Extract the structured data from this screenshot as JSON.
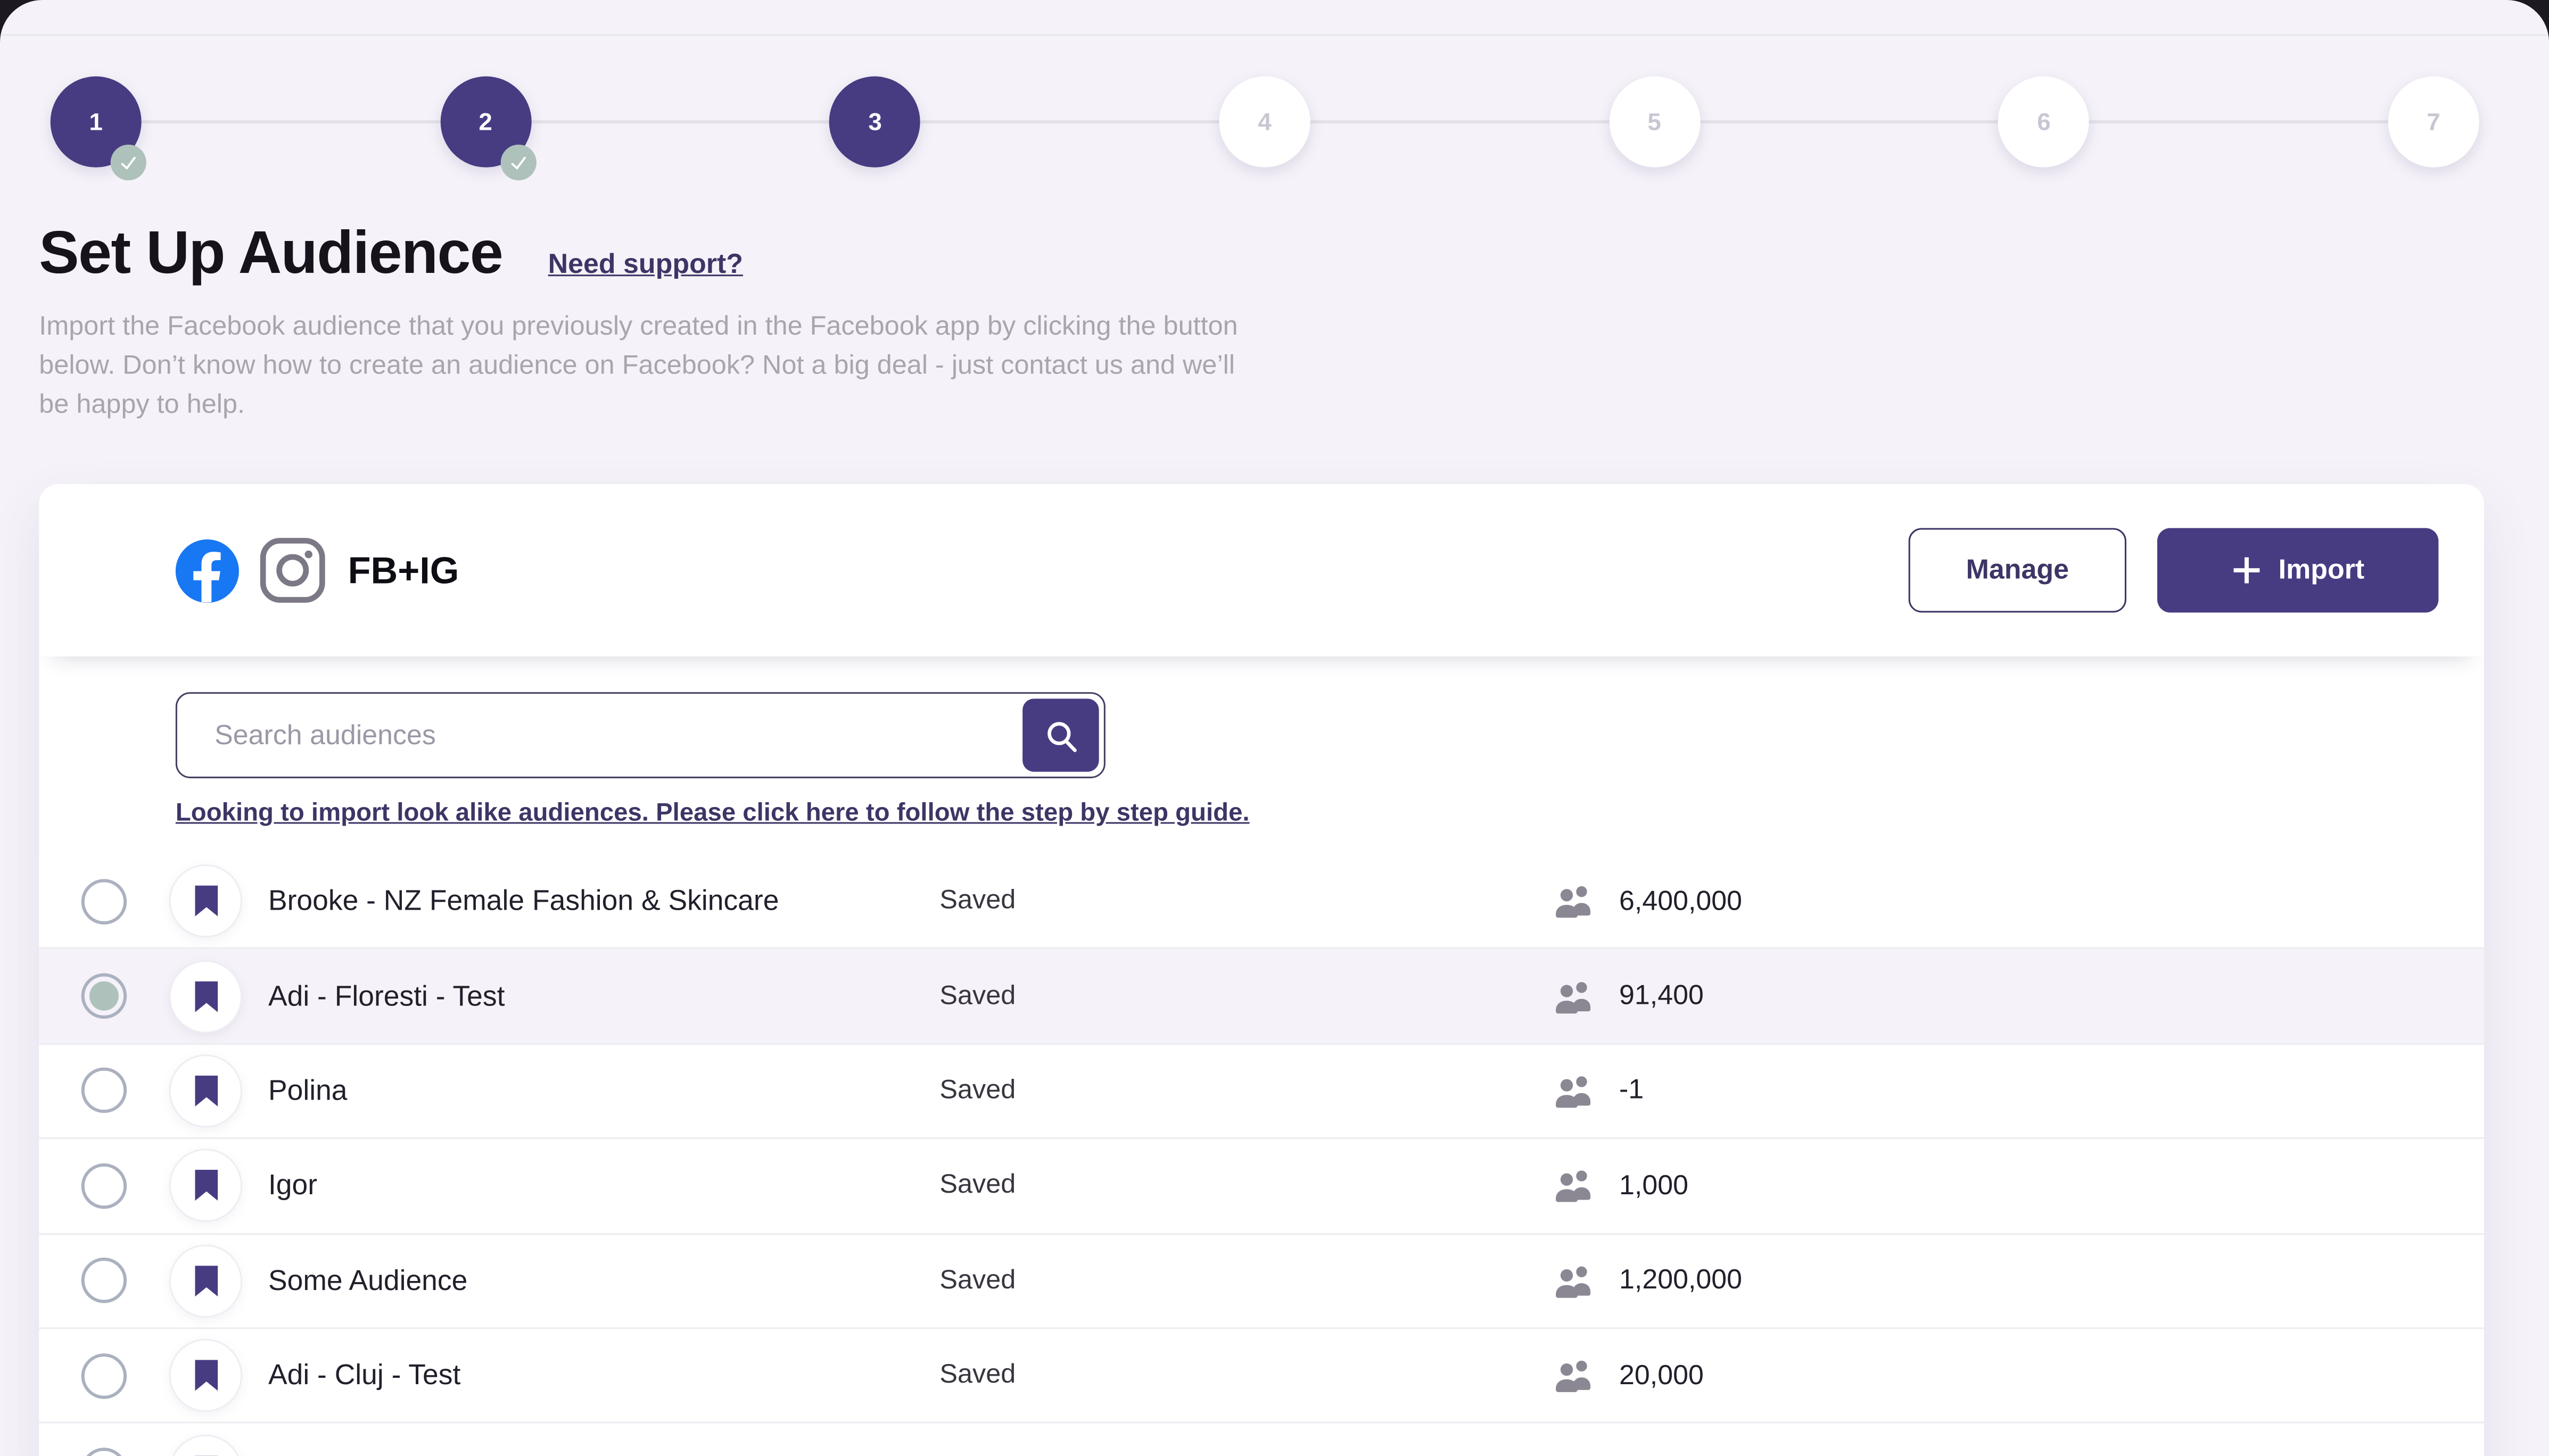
{
  "stepper": {
    "steps": [
      {
        "number": "1",
        "state": "done"
      },
      {
        "number": "2",
        "state": "done"
      },
      {
        "number": "3",
        "state": "active"
      },
      {
        "number": "4",
        "state": "upcoming"
      },
      {
        "number": "5",
        "state": "upcoming"
      },
      {
        "number": "6",
        "state": "upcoming"
      },
      {
        "number": "7",
        "state": "upcoming"
      }
    ]
  },
  "header": {
    "title": "Set Up Audience",
    "support_link": "Need support?",
    "description": "Import the Facebook audience that you previously created in the Facebook app by clicking the button\nbelow. Don’t know how to create an audience on Facebook? Not a big deal - just contact us and we’ll\nbe happy to help."
  },
  "card": {
    "source_label": "FB+IG",
    "manage_button": "Manage",
    "import_button": "Import",
    "search_placeholder": "Search audiences",
    "lookalike_link": "Looking to import look alike audiences. Please click here to follow the step by step guide."
  },
  "audiences": [
    {
      "name": "Brooke - NZ Female Fashion & Skincare",
      "status": "Saved",
      "size": "6,400,000",
      "selected": false
    },
    {
      "name": "Adi - Floresti - Test",
      "status": "Saved",
      "size": "91,400",
      "selected": true
    },
    {
      "name": "Polina",
      "status": "Saved",
      "size": "-1",
      "selected": false
    },
    {
      "name": "Igor",
      "status": "Saved",
      "size": "1,000",
      "selected": false
    },
    {
      "name": "Some Audience",
      "status": "Saved",
      "size": "1,200,000",
      "selected": false
    },
    {
      "name": "Adi - Cluj - Test",
      "status": "Saved",
      "size": "20,000",
      "selected": false
    }
  ],
  "partial_row_visible": true,
  "colors": {
    "primary_purple": "#473c82",
    "link_purple": "#3e3566",
    "sage_accent": "#aec1ba",
    "facebook_blue": "#1877f2",
    "instagram_gray": "#7d7886",
    "page_background": "#f5f2f9",
    "window_backdrop": "#1c1920",
    "selected_row_background": "#f5f2f9",
    "muted_text": "#a8a5b0",
    "dark_text": "#221f2b"
  }
}
